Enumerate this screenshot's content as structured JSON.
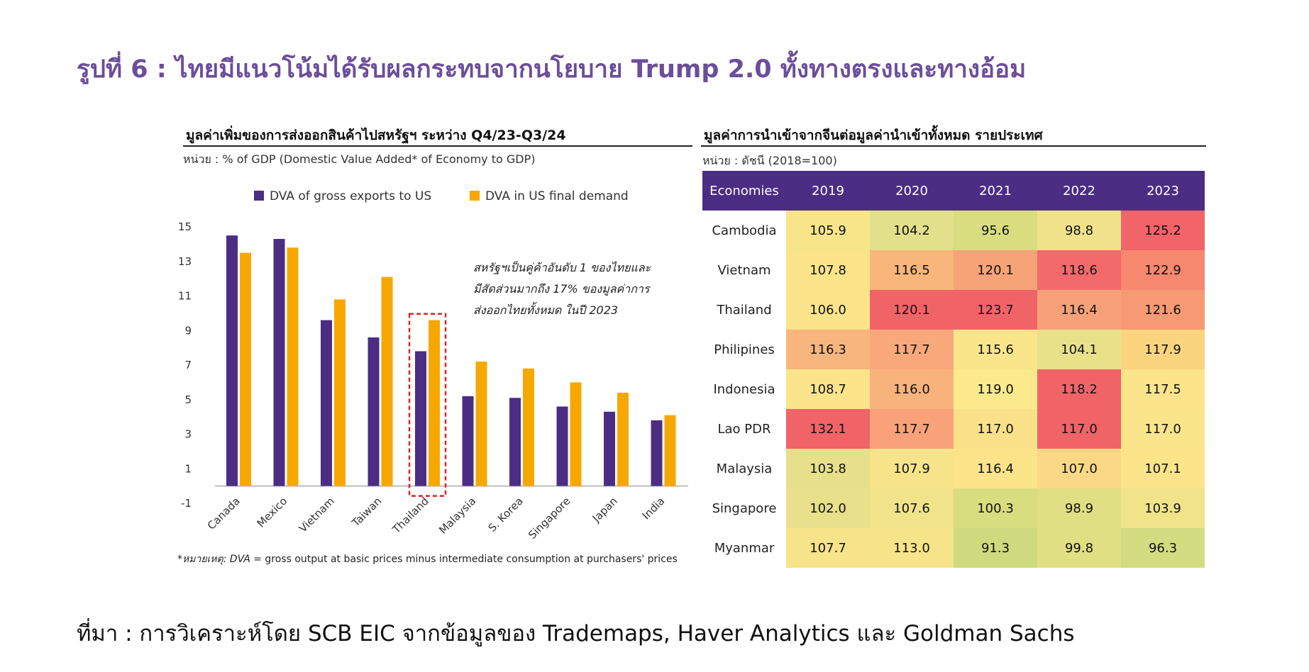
{
  "page": {
    "title": "รูปที่ 6 : ไทยมีแนวโน้มได้รับผลกระทบจากนโยบาย Trump 2.0 ทั้งทางตรงและทางอ้อม",
    "source": "ที่มา : การวิเคราะห์โดย SCB EIC จากข้อมูลของ Trademaps, Haver Analytics และ Goldman Sachs"
  },
  "left_panel": {
    "title": "มูลค่าเพิ่มของการส่งออกสินค้าไปสหรัฐฯ ระหว่าง Q4/23-Q3/24",
    "unit": "หน่วย : % of GDP (Domestic Value Added* of Economy to GDP)",
    "annotation": [
      "สหรัฐฯเป็นคู่ค้าอันดับ 1 ของไทยและ",
      "มีสัดส่วนมากถึง 17% ของมูลค่าการ",
      "ส่งออกไทยทั้งหมด ในปี 2023"
    ],
    "footnote_label": "*หมายเหตุ: DVA",
    "footnote_text": " = gross output at basic prices minus intermediate consumption at purchasers' prices"
  },
  "right_panel": {
    "title": "มูลค่าการนำเข้าจากจีนต่อมูลค่านำเข้าทั้งหมด รายประเทศ",
    "unit": "หน่วย : ดัชนี (2018=100)"
  },
  "colors": {
    "series_purple": "#4b2d83",
    "series_orange": "#f7a800",
    "highlight_box": "#d62828",
    "header_purple": "#4b2d83"
  },
  "chart_data": [
    {
      "type": "bar",
      "title": "มูลค่าเพิ่มของการส่งออกสินค้าไปสหรัฐฯ ระหว่าง Q4/23-Q3/24",
      "categories": [
        "Canada",
        "Mexico",
        "Vietnam",
        "Taiwan",
        "Thailand",
        "Malaysia",
        "S. Korea",
        "Singapore",
        "Japan",
        "India"
      ],
      "series": [
        {
          "name": "DVA of gross exports to US",
          "values": [
            14.5,
            14.3,
            9.6,
            8.6,
            7.8,
            5.2,
            5.1,
            4.6,
            4.3,
            3.8
          ]
        },
        {
          "name": "DVA in US final demand",
          "values": [
            13.5,
            13.8,
            10.8,
            12.1,
            9.6,
            7.2,
            6.8,
            6.0,
            5.4,
            4.1
          ]
        }
      ],
      "y_ticks": [
        -1,
        1,
        3,
        5,
        7,
        9,
        11,
        13,
        15
      ],
      "ylim": [
        -1,
        15
      ],
      "highlight_category": "Thailand",
      "legend_position": "top"
    },
    {
      "type": "heatmap",
      "title": "มูลค่าการนำเข้าจากจีนต่อมูลค่านำเข้าทั้งหมด รายประเทศ",
      "header": "Economies",
      "columns": [
        "2019",
        "2020",
        "2021",
        "2022",
        "2023"
      ],
      "rows": [
        {
          "name": "Cambodia",
          "values": [
            "105.9",
            "104.2",
            "95.6",
            "98.8",
            "125.2"
          ]
        },
        {
          "name": "Vietnam",
          "values": [
            "107.8",
            "116.5",
            "120.1",
            "118.6",
            "122.9"
          ]
        },
        {
          "name": "Thailand",
          "values": [
            "106.0",
            "120.1",
            "123.7",
            "116.4",
            "121.6"
          ]
        },
        {
          "name": "Philipines",
          "values": [
            "116.3",
            "117.7",
            "115.6",
            "104.1",
            "117.9"
          ]
        },
        {
          "name": "Indonesia",
          "values": [
            "108.7",
            "116.0",
            "119.0",
            "118.2",
            "117.5"
          ]
        },
        {
          "name": "Lao PDR",
          "values": [
            "132.1",
            "117.7",
            "117.0",
            "117.0",
            "117.0"
          ]
        },
        {
          "name": "Malaysia",
          "values": [
            "103.8",
            "107.9",
            "116.4",
            "107.0",
            "107.1"
          ]
        },
        {
          "name": "Singapore",
          "values": [
            "102.0",
            "107.6",
            "100.3",
            "98.9",
            "103.9"
          ]
        },
        {
          "name": "Myanmar",
          "values": [
            "107.7",
            "113.0",
            "91.3",
            "99.8",
            "96.3"
          ]
        }
      ],
      "cell_colors": [
        [
          "#f8e58a",
          "#e2e08a",
          "#d9dd80",
          "#efe28a",
          "#f0646a"
        ],
        [
          "#fbe48a",
          "#f9b67a",
          "#f7a378",
          "#f26a6c",
          "#f5886e"
        ],
        [
          "#fbe48a",
          "#f06468",
          "#f06468",
          "#f6a07a",
          "#f59a72"
        ],
        [
          "#f8b57e",
          "#f8a87a",
          "#fbe58a",
          "#e9e18a",
          "#fbd47e"
        ],
        [
          "#fbe48a",
          "#f8b27c",
          "#fbe98c",
          "#f06468",
          "#fbe48a"
        ],
        [
          "#f06468",
          "#f9a27a",
          "#fbe08a",
          "#f06468",
          "#fbe58a"
        ],
        [
          "#e6e08a",
          "#f7e48a",
          "#fbe48a",
          "#fbd886",
          "#fbe48a"
        ],
        [
          "#e8e08a",
          "#f0e38a",
          "#d8dd80",
          "#e0df84",
          "#f0e48a"
        ],
        [
          "#f7e38a",
          "#f6e48a",
          "#cddb7e",
          "#e0df84",
          "#d3dc80"
        ]
      ]
    }
  ]
}
